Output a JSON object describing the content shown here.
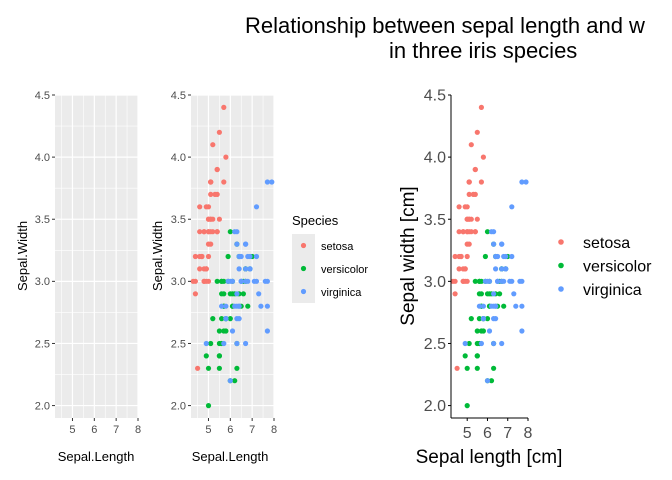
{
  "title_lines": [
    "Relationship between sepal length and w",
    "in three iris species"
  ],
  "colors": {
    "setosa": "#F8766D",
    "versicolor": "#00BA38",
    "virginica": "#619CFF",
    "panel_bg": "#EBEBEB",
    "grid": "#FFFFFF",
    "axis_text": "#4D4D4D"
  },
  "legend": {
    "title": "Species",
    "entries": [
      "setosa",
      "versicolor",
      "virginica"
    ]
  },
  "chart_data": [
    {
      "type": "scatter",
      "title": "",
      "xlabel": "Sepal.Length",
      "ylabel": "Sepal.Width",
      "xlim": [
        4.2,
        8.0
      ],
      "ylim": [
        1.9,
        4.5
      ],
      "x_ticks": [
        "5",
        "6",
        "7",
        "8"
      ],
      "y_ticks": [
        "2.0",
        "2.5",
        "3.0",
        "3.5",
        "4.0",
        "4.5"
      ],
      "grid": true,
      "series": []
    },
    {
      "type": "scatter",
      "title": "",
      "xlabel": "Sepal.Length",
      "ylabel": "Sepal.Width",
      "xlim": [
        4.2,
        8.0
      ],
      "ylim": [
        1.9,
        4.5
      ],
      "x_ticks": [
        "5",
        "6",
        "7",
        "8"
      ],
      "y_ticks": [
        "2.0",
        "2.5",
        "3.0",
        "3.5",
        "4.0",
        "4.5"
      ],
      "grid": true,
      "legend_position": "right",
      "series": [
        {
          "name": "setosa",
          "points": [
            [
              5.1,
              3.5
            ],
            [
              4.9,
              3.0
            ],
            [
              4.7,
              3.2
            ],
            [
              4.6,
              3.1
            ],
            [
              5.0,
              3.6
            ],
            [
              5.4,
              3.9
            ],
            [
              4.6,
              3.4
            ],
            [
              5.0,
              3.4
            ],
            [
              4.4,
              2.9
            ],
            [
              4.9,
              3.1
            ],
            [
              5.4,
              3.7
            ],
            [
              4.8,
              3.4
            ],
            [
              4.8,
              3.0
            ],
            [
              4.3,
              3.0
            ],
            [
              5.8,
              4.0
            ],
            [
              5.7,
              4.4
            ],
            [
              5.4,
              3.9
            ],
            [
              5.1,
              3.5
            ],
            [
              5.7,
              3.8
            ],
            [
              5.1,
              3.8
            ],
            [
              5.4,
              3.4
            ],
            [
              5.1,
              3.7
            ],
            [
              4.6,
              3.6
            ],
            [
              5.1,
              3.3
            ],
            [
              4.8,
              3.4
            ],
            [
              5.0,
              3.0
            ],
            [
              5.0,
              3.4
            ],
            [
              5.2,
              3.5
            ],
            [
              5.2,
              3.4
            ],
            [
              4.7,
              3.2
            ],
            [
              4.8,
              3.1
            ],
            [
              5.4,
              3.4
            ],
            [
              5.2,
              4.1
            ],
            [
              5.5,
              4.2
            ],
            [
              4.9,
              3.1
            ],
            [
              5.0,
              3.2
            ],
            [
              5.5,
              3.5
            ],
            [
              4.9,
              3.6
            ],
            [
              4.4,
              3.0
            ],
            [
              5.1,
              3.4
            ],
            [
              5.0,
              3.5
            ],
            [
              4.5,
              2.3
            ],
            [
              4.4,
              3.2
            ],
            [
              5.0,
              3.5
            ],
            [
              5.1,
              3.8
            ],
            [
              4.8,
              3.0
            ],
            [
              5.1,
              3.8
            ],
            [
              4.6,
              3.2
            ],
            [
              5.3,
              3.7
            ],
            [
              5.0,
              3.3
            ]
          ]
        },
        {
          "name": "versicolor",
          "points": [
            [
              7.0,
              3.2
            ],
            [
              6.4,
              3.2
            ],
            [
              6.9,
              3.1
            ],
            [
              5.5,
              2.3
            ],
            [
              6.5,
              2.8
            ],
            [
              5.7,
              2.8
            ],
            [
              6.3,
              3.3
            ],
            [
              4.9,
              2.4
            ],
            [
              6.6,
              2.9
            ],
            [
              5.2,
              2.7
            ],
            [
              5.0,
              2.0
            ],
            [
              5.9,
              3.0
            ],
            [
              6.0,
              2.2
            ],
            [
              6.1,
              2.9
            ],
            [
              5.6,
              2.9
            ],
            [
              6.7,
              3.1
            ],
            [
              5.6,
              3.0
            ],
            [
              5.8,
              2.7
            ],
            [
              6.2,
              2.2
            ],
            [
              5.6,
              2.5
            ],
            [
              5.9,
              3.2
            ],
            [
              6.1,
              2.8
            ],
            [
              6.3,
              2.5
            ],
            [
              6.1,
              2.8
            ],
            [
              6.4,
              2.9
            ],
            [
              6.6,
              3.0
            ],
            [
              6.8,
              2.8
            ],
            [
              6.7,
              3.0
            ],
            [
              6.0,
              2.9
            ],
            [
              5.7,
              2.6
            ],
            [
              5.5,
              2.4
            ],
            [
              5.5,
              2.4
            ],
            [
              5.8,
              2.7
            ],
            [
              6.0,
              2.7
            ],
            [
              5.4,
              3.0
            ],
            [
              6.0,
              3.4
            ],
            [
              6.7,
              3.1
            ],
            [
              6.3,
              2.3
            ],
            [
              5.6,
              3.0
            ],
            [
              5.5,
              2.5
            ],
            [
              5.5,
              2.6
            ],
            [
              6.1,
              3.0
            ],
            [
              5.8,
              2.6
            ],
            [
              5.0,
              2.3
            ],
            [
              5.6,
              2.7
            ],
            [
              5.7,
              3.0
            ],
            [
              5.7,
              2.9
            ],
            [
              6.2,
              2.9
            ],
            [
              5.1,
              2.5
            ],
            [
              5.7,
              2.8
            ]
          ]
        },
        {
          "name": "virginica",
          "points": [
            [
              6.3,
              3.3
            ],
            [
              5.8,
              2.7
            ],
            [
              7.1,
              3.0
            ],
            [
              6.3,
              2.9
            ],
            [
              6.5,
              3.0
            ],
            [
              7.6,
              3.0
            ],
            [
              4.9,
              2.5
            ],
            [
              7.3,
              2.9
            ],
            [
              6.7,
              2.5
            ],
            [
              7.2,
              3.6
            ],
            [
              6.5,
              3.2
            ],
            [
              6.4,
              2.7
            ],
            [
              6.8,
              3.0
            ],
            [
              5.7,
              2.5
            ],
            [
              5.8,
              2.8
            ],
            [
              6.4,
              3.2
            ],
            [
              6.5,
              3.0
            ],
            [
              7.7,
              3.8
            ],
            [
              7.7,
              2.6
            ],
            [
              6.0,
              2.2
            ],
            [
              6.9,
              3.2
            ],
            [
              5.6,
              2.8
            ],
            [
              7.7,
              2.8
            ],
            [
              6.3,
              2.7
            ],
            [
              6.7,
              3.3
            ],
            [
              7.2,
              3.2
            ],
            [
              6.2,
              2.8
            ],
            [
              6.1,
              3.0
            ],
            [
              6.4,
              2.8
            ],
            [
              7.2,
              3.0
            ],
            [
              7.4,
              2.8
            ],
            [
              7.9,
              3.8
            ],
            [
              6.4,
              2.8
            ],
            [
              6.3,
              2.8
            ],
            [
              6.1,
              2.6
            ],
            [
              7.7,
              3.0
            ],
            [
              6.3,
              3.4
            ],
            [
              6.4,
              3.1
            ],
            [
              6.0,
              3.0
            ],
            [
              6.9,
              3.1
            ],
            [
              6.7,
              3.1
            ],
            [
              6.9,
              3.1
            ],
            [
              5.8,
              2.7
            ],
            [
              6.8,
              3.2
            ],
            [
              6.7,
              3.3
            ],
            [
              6.7,
              3.0
            ],
            [
              6.3,
              2.5
            ],
            [
              6.5,
              3.0
            ],
            [
              6.2,
              3.4
            ],
            [
              5.9,
              3.0
            ]
          ]
        }
      ]
    },
    {
      "type": "scatter",
      "title": "",
      "xlabel": "Sepal length [cm]",
      "ylabel": "Sepal width [cm]",
      "xlim": [
        4.2,
        8.0
      ],
      "ylim": [
        1.9,
        4.5
      ],
      "x_ticks": [
        "5",
        "6",
        "7",
        "8"
      ],
      "y_ticks": [
        "2.0",
        "2.5",
        "3.0",
        "3.5",
        "4.0",
        "4.5"
      ],
      "grid": false,
      "legend_position": "right",
      "series_ref": "same data as panel 2"
    }
  ]
}
